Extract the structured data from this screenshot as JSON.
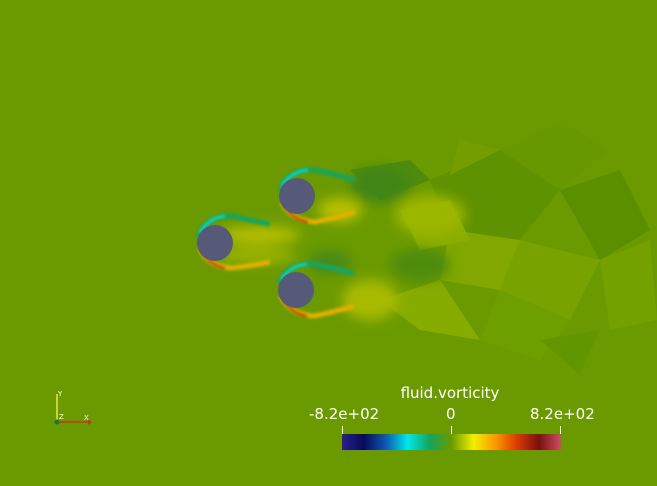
{
  "background_color": "#6b9a00",
  "scene": {
    "description_icon": "vorticity-field",
    "cylinder_color": "#565a78"
  },
  "axes": {
    "y_label": "Y",
    "z_label": "Z",
    "x_label": "X"
  },
  "colorbar": {
    "title": "fluid.vorticity",
    "min_label": "-8.2e+02",
    "mid_label": "0",
    "max_label": "8.2e+02",
    "colors": [
      "#2a1f8c",
      "#070b5a",
      "#0d59b0",
      "#00e8e8",
      "#13a55f",
      "#6b9a00",
      "#f0f000",
      "#ff9800",
      "#d83a00",
      "#7a1010",
      "#c85060"
    ]
  }
}
